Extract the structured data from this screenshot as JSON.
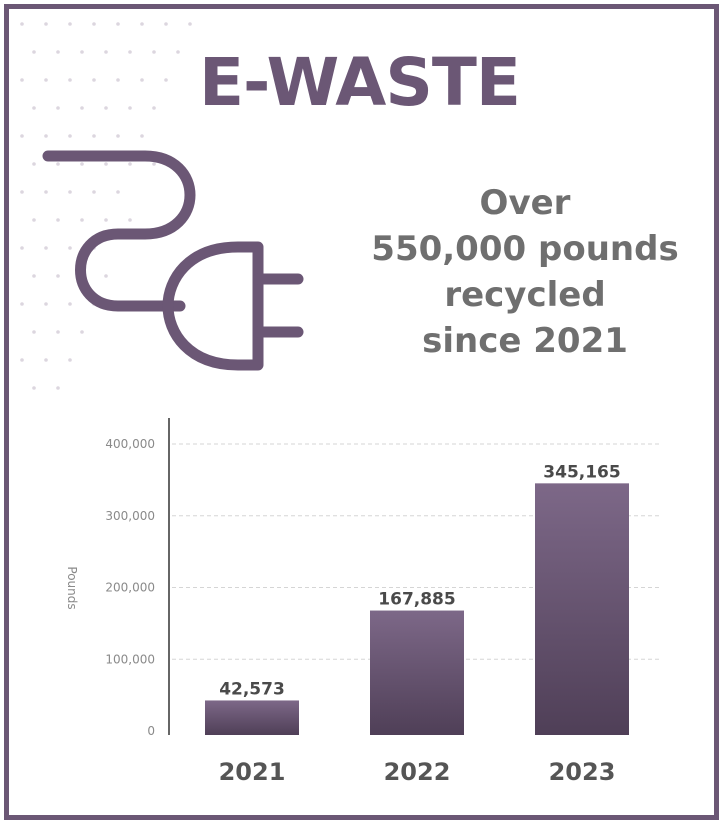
{
  "header": {
    "title": "E-WASTE",
    "tagline": [
      "Over",
      "550,000 pounds",
      "recycled",
      "since 2021"
    ]
  },
  "icons": [
    "plug-icon",
    "dot-pattern"
  ],
  "colors": {
    "brand": "#6b5775",
    "bar_top": "#7d6888",
    "bar_bottom": "#4f3f57",
    "text_gray": "#6f6f6f"
  },
  "chart_data": {
    "type": "bar",
    "title": "",
    "xlabel": "",
    "ylabel": "Pounds",
    "categories": [
      "2021",
      "2022",
      "2023"
    ],
    "values": [
      42573,
      167885,
      345165
    ],
    "data_labels": [
      "42,573",
      "167,885",
      "345,165"
    ],
    "ylim": [
      0,
      400000
    ],
    "yticks": [
      0,
      100000,
      200000,
      300000,
      400000
    ],
    "ytick_labels": [
      "0",
      "100,000",
      "200,000",
      "300,000",
      "400,000"
    ],
    "grid": true,
    "legend": "none"
  }
}
